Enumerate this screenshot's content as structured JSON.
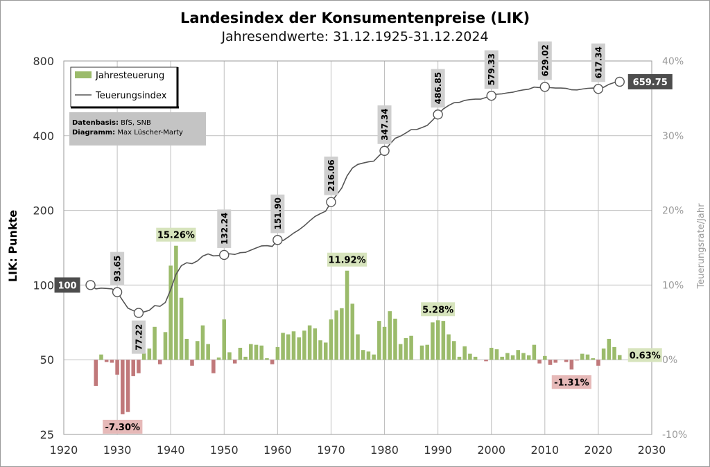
{
  "title": "Landesindex der Konsumentenpreise (LIK)",
  "subtitle": "Jahresendwerte: 31.12.1925-31.12.2024",
  "colors": {
    "positive_bar": "#9bbb6b",
    "negative_bar": "#c0787a",
    "line": "#555555",
    "grid": "#bdbdbd",
    "label_bg": "#cfcfcf",
    "end_label_bg": "#4d4d4d",
    "pos_label_bg": "#d7e4bd",
    "neg_label_bg": "#e6b9b8"
  },
  "legend": {
    "bars": "Jahresteuerung",
    "line": "Teuerungsindex"
  },
  "note": {
    "line1_bold": "Datenbasis:",
    "line1": " BfS, SNB",
    "line2_bold": "Diagramm:",
    "line2": " Max Lüscher-Marty"
  },
  "chart_data": {
    "type": "bar+line",
    "title": "Landesindex der Konsumentenpreise (LIK)",
    "subtitle": "Jahresendwerte: 31.12.1925-31.12.2024",
    "xlabel": "",
    "ylabel_left": "LIK: Punkte",
    "ylabel_right": "Teuerungsrate/Jahr",
    "x_ticks": [
      "1920",
      "1930",
      "1940",
      "1950",
      "1960",
      "1970",
      "1980",
      "1990",
      "2000",
      "2010",
      "2020",
      "2030"
    ],
    "xlim": [
      1920,
      2030
    ],
    "y_left_scale": "log2",
    "y_left_ticks": [
      "25",
      "50",
      "100",
      "200",
      "400",
      "800"
    ],
    "y_left_lim": [
      25,
      800
    ],
    "y_right_ticks": [
      "-10%",
      "0%",
      "10%",
      "20%",
      "30%",
      "40%"
    ],
    "y_right_lim": [
      -10,
      40
    ],
    "grid": true,
    "legend_position": "top-left",
    "series": [
      {
        "name": "Jahresteuerung",
        "type": "bar",
        "unit": "%",
        "x": [
          1926,
          1927,
          1928,
          1929,
          1930,
          1931,
          1932,
          1933,
          1934,
          1935,
          1936,
          1937,
          1938,
          1939,
          1940,
          1941,
          1942,
          1943,
          1944,
          1945,
          1946,
          1947,
          1948,
          1949,
          1950,
          1951,
          1952,
          1953,
          1954,
          1955,
          1956,
          1957,
          1958,
          1959,
          1960,
          1961,
          1962,
          1963,
          1964,
          1965,
          1966,
          1967,
          1968,
          1969,
          1970,
          1971,
          1972,
          1973,
          1974,
          1975,
          1976,
          1977,
          1978,
          1979,
          1980,
          1981,
          1982,
          1983,
          1984,
          1985,
          1986,
          1987,
          1988,
          1989,
          1990,
          1991,
          1992,
          1993,
          1994,
          1995,
          1996,
          1997,
          1998,
          1999,
          2000,
          2001,
          2002,
          2003,
          2004,
          2005,
          2006,
          2007,
          2008,
          2009,
          2010,
          2011,
          2012,
          2013,
          2014,
          2015,
          2016,
          2017,
          2018,
          2019,
          2020,
          2021,
          2022,
          2023,
          2024
        ],
        "values": [
          -3.5,
          0.7,
          -0.3,
          -0.4,
          -2.0,
          -7.3,
          -7.0,
          -2.2,
          -1.8,
          0.9,
          1.5,
          4.4,
          -0.6,
          3.7,
          12.6,
          15.26,
          8.3,
          2.8,
          -0.8,
          2.5,
          4.6,
          2.1,
          -1.8,
          0.3,
          5.4,
          1.0,
          -0.5,
          1.6,
          0.4,
          2.1,
          2.0,
          1.9,
          0.2,
          -0.6,
          1.7,
          3.6,
          3.4,
          3.8,
          3.0,
          3.9,
          4.6,
          4.2,
          2.6,
          2.3,
          5.4,
          6.6,
          6.9,
          11.92,
          7.5,
          3.4,
          1.3,
          1.1,
          0.7,
          5.2,
          4.4,
          6.5,
          5.5,
          2.1,
          2.9,
          3.2,
          0.0,
          1.9,
          2.0,
          5.0,
          5.28,
          5.2,
          3.4,
          2.5,
          0.4,
          1.8,
          0.8,
          0.4,
          0.0,
          -0.2,
          1.6,
          1.4,
          0.4,
          0.9,
          0.6,
          1.3,
          0.9,
          0.6,
          2.0,
          -0.5,
          0.5,
          -0.7,
          -0.4,
          0.0,
          -0.3,
          -1.31,
          -0.1,
          0.8,
          0.7,
          0.2,
          -0.8,
          1.5,
          2.8,
          1.7,
          0.63
        ]
      },
      {
        "name": "Teuerungsindex",
        "type": "line",
        "unit": "Punkte",
        "x": [
          1925,
          1926,
          1927,
          1928,
          1929,
          1930,
          1931,
          1932,
          1933,
          1934,
          1935,
          1936,
          1937,
          1938,
          1939,
          1940,
          1941,
          1942,
          1943,
          1944,
          1945,
          1946,
          1947,
          1948,
          1949,
          1950,
          1951,
          1952,
          1953,
          1954,
          1955,
          1956,
          1957,
          1958,
          1959,
          1960,
          1961,
          1962,
          1963,
          1964,
          1965,
          1966,
          1967,
          1968,
          1969,
          1970,
          1971,
          1972,
          1973,
          1974,
          1975,
          1976,
          1977,
          1978,
          1979,
          1980,
          1981,
          1982,
          1983,
          1984,
          1985,
          1986,
          1987,
          1988,
          1989,
          1990,
          1991,
          1992,
          1993,
          1994,
          1995,
          1996,
          1997,
          1998,
          1999,
          2000,
          2001,
          2002,
          2003,
          2004,
          2005,
          2006,
          2007,
          2008,
          2009,
          2010,
          2011,
          2012,
          2013,
          2014,
          2015,
          2016,
          2017,
          2018,
          2019,
          2020,
          2021,
          2022,
          2023,
          2024
        ],
        "values": [
          100,
          96.5,
          97.2,
          96.9,
          96.5,
          93.65,
          86.8,
          80.7,
          78.9,
          77.22,
          77.9,
          79.1,
          82.6,
          82.1,
          85.1,
          95.9,
          110.5,
          119.7,
          123.0,
          122.0,
          125.1,
          130.8,
          133.5,
          131.1,
          131.5,
          132.24,
          133.6,
          132.9,
          135.0,
          135.5,
          138.3,
          141.1,
          143.8,
          144.1,
          143.2,
          151.9,
          151.0,
          156.1,
          162.0,
          166.9,
          173.4,
          181.4,
          189.0,
          193.9,
          198.4,
          216.06,
          230.3,
          246.2,
          275.5,
          296.2,
          306.3,
          310.3,
          313.7,
          315.9,
          332.3,
          347.34,
          369.9,
          390.3,
          398.5,
          410.1,
          423.2,
          423.2,
          431.2,
          439.9,
          461.9,
          486.85,
          512.2,
          529.6,
          542.9,
          545.0,
          554.8,
          559.2,
          561.4,
          561.4,
          570.4,
          579.33,
          587.4,
          589.7,
          595.0,
          598.6,
          606.4,
          611.9,
          615.6,
          627.9,
          624.8,
          629.02,
          624.6,
          622.1,
          622.1,
          620.2,
          612.1,
          611.5,
          616.4,
          620.7,
          622.0,
          617.34,
          626.6,
          644.2,
          655.1,
          659.75
        ]
      }
    ],
    "index_labels": [
      {
        "year": 1925,
        "value": 100,
        "text": "100"
      },
      {
        "year": 1930,
        "value": 93.65,
        "text": "93.65"
      },
      {
        "year": 1934,
        "value": 77.22,
        "text": "77.22"
      },
      {
        "year": 1950,
        "value": 132.24,
        "text": "132.24"
      },
      {
        "year": 1960,
        "value": 151.9,
        "text": "151.90"
      },
      {
        "year": 1970,
        "value": 216.06,
        "text": "216.06"
      },
      {
        "year": 1980,
        "value": 347.34,
        "text": "347.34"
      },
      {
        "year": 1990,
        "value": 486.85,
        "text": "486.85"
      },
      {
        "year": 2000,
        "value": 579.33,
        "text": "579.33"
      },
      {
        "year": 2010,
        "value": 629.02,
        "text": "629.02"
      },
      {
        "year": 2020,
        "value": 617.34,
        "text": "617.34"
      },
      {
        "year": 2024,
        "value": 659.75,
        "text": "659.75"
      }
    ],
    "rate_labels": [
      {
        "year": 1941,
        "value": 15.26,
        "text": "15.26%"
      },
      {
        "year": 1973,
        "value": 11.92,
        "text": "11.92%"
      },
      {
        "year": 1990,
        "value": 5.28,
        "text": "5.28%"
      },
      {
        "year": 1931,
        "value": -7.3,
        "text": "-7.30%"
      },
      {
        "year": 2015,
        "value": -1.31,
        "text": "-1.31%"
      },
      {
        "year": 2024,
        "value": 0.63,
        "text": "0.63%"
      }
    ]
  }
}
